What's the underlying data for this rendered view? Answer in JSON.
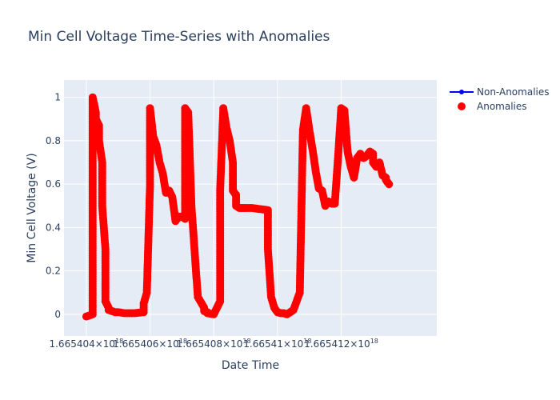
{
  "chart_data": {
    "type": "scatter",
    "title": "Min Cell Voltage Time-Series with Anomalies",
    "xlabel": "Date Time",
    "ylabel": "Min Cell Voltage (V)",
    "x_unit": "x10^18 ns",
    "x_ticks": [
      {
        "value": 1.665404,
        "label": "1.665404×10",
        "sup": "18"
      },
      {
        "value": 1.665406,
        "label": "1.665406×10",
        "sup": "18"
      },
      {
        "value": 1.665408,
        "label": "1.665408×10",
        "sup": "18"
      },
      {
        "value": 1.66541,
        "label": "1.66541×10",
        "sup": "18"
      },
      {
        "value": 1.665412,
        "label": "1.665412×10",
        "sup": "18"
      }
    ],
    "y_ticks": [
      {
        "value": 0,
        "label": "0"
      },
      {
        "value": 0.2,
        "label": "0.2"
      },
      {
        "value": 0.4,
        "label": "0.4"
      },
      {
        "value": 0.6,
        "label": "0.6"
      },
      {
        "value": 0.8,
        "label": "0.8"
      },
      {
        "value": 1,
        "label": "1"
      }
    ],
    "xlim": [
      1.6654033,
      1.665415
    ],
    "ylim": [
      -0.1,
      1.08
    ],
    "grid": true,
    "legend_position": "top-right",
    "colors": {
      "plot_bg": "#e5ecf6",
      "non_anomalies": "#0000ff",
      "anomalies": "#ff0000"
    },
    "series": [
      {
        "name": "Non-Anomalies",
        "mode": "lines+markers",
        "color": "#0000ff",
        "x": [],
        "y": []
      },
      {
        "name": "Anomalies",
        "mode": "markers",
        "color": "#ff0000",
        "path_x": [
          1.665404,
          1.6654042,
          1.6654042,
          1.6654042,
          1.6654043,
          1.6654043,
          1.6654044,
          1.6654044,
          1.6654045,
          1.6654045,
          1.6654046,
          1.6654046,
          1.6654046,
          1.6654047,
          1.6654047,
          1.6654048,
          1.6654049,
          1.665405,
          1.6654052,
          1.6654055,
          1.6654058,
          1.6654058,
          1.6654059,
          1.665406,
          1.665406,
          1.6654061,
          1.6654062,
          1.6654063,
          1.6654064,
          1.6654065,
          1.6654066,
          1.6654067,
          1.6654068,
          1.6654069,
          1.665407,
          1.665407,
          1.6654071,
          1.6654071,
          1.6654071,
          1.6654072,
          1.6654073,
          1.6654075,
          1.6654077,
          1.6654077,
          1.6654078,
          1.6654078,
          1.665408,
          1.6654081,
          1.6654082,
          1.6654082,
          1.6654083,
          1.6654084,
          1.6654085,
          1.6654086,
          1.6654086,
          1.6654086,
          1.6654087,
          1.6654087,
          1.6654088,
          1.6654089,
          1.665409,
          1.6654092,
          1.6654097,
          1.6654097,
          1.6654098,
          1.6654099,
          1.66541,
          1.6654101,
          1.6654102,
          1.6654103,
          1.6654104,
          1.6654105,
          1.6654106,
          1.6654107,
          1.6654108,
          1.6654109,
          1.665411,
          1.6654111,
          1.6654112,
          1.6654113,
          1.6654114,
          1.6654115,
          1.6654116,
          1.6654117,
          1.6654118,
          1.6654119,
          1.665412,
          1.6654121,
          1.6654122,
          1.6654123,
          1.6654124,
          1.6654125,
          1.6654126,
          1.6654127,
          1.6654128,
          1.6654129,
          1.665413,
          1.665413,
          1.6654131,
          1.6654132,
          1.6654133,
          1.6654134,
          1.6654134,
          1.6654135
        ],
        "path_y": [
          -0.01,
          0.0,
          0.5,
          1.0,
          0.93,
          0.9,
          0.87,
          0.8,
          0.7,
          0.5,
          0.3,
          0.15,
          0.06,
          0.03,
          0.02,
          0.015,
          0.01,
          0.01,
          0.005,
          0.005,
          0.01,
          0.05,
          0.1,
          0.6,
          0.95,
          0.82,
          0.78,
          0.7,
          0.65,
          0.56,
          0.57,
          0.54,
          0.43,
          0.45,
          0.45,
          0.45,
          0.44,
          0.6,
          0.95,
          0.93,
          0.5,
          0.08,
          0.03,
          0.015,
          0.01,
          0.005,
          0.0,
          0.03,
          0.06,
          0.57,
          0.95,
          0.86,
          0.8,
          0.7,
          0.6,
          0.57,
          0.55,
          0.5,
          0.49,
          0.49,
          0.49,
          0.49,
          0.48,
          0.3,
          0.08,
          0.03,
          0.01,
          0.005,
          0.005,
          0.0,
          0.01,
          0.02,
          0.06,
          0.1,
          0.85,
          0.95,
          0.85,
          0.76,
          0.66,
          0.58,
          0.57,
          0.5,
          0.52,
          0.51,
          0.51,
          0.72,
          0.95,
          0.94,
          0.75,
          0.68,
          0.63,
          0.72,
          0.74,
          0.72,
          0.73,
          0.75,
          0.74,
          0.7,
          0.68,
          0.7,
          0.64,
          0.63,
          0.62,
          0.6
        ],
        "note_points": []
      }
    ]
  }
}
